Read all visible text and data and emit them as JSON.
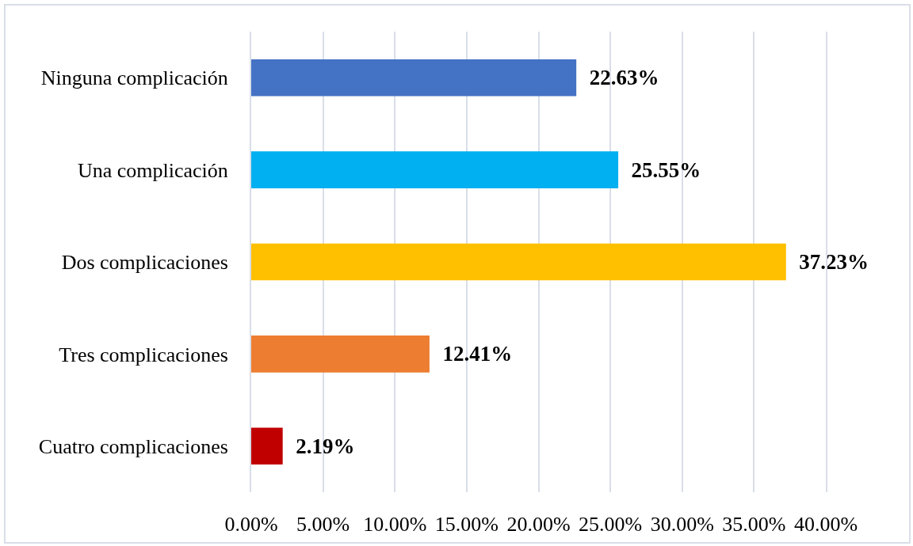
{
  "chart_data": {
    "type": "bar",
    "orientation": "horizontal",
    "categories": [
      "Ninguna complicación",
      "Una complicación",
      "Dos complicaciones",
      "Tres complicaciones",
      "Cuatro complicaciones"
    ],
    "values": [
      22.63,
      25.55,
      37.23,
      12.41,
      2.19
    ],
    "colors": [
      "#4472c4",
      "#00b0f0",
      "#ffc000",
      "#ed7d31",
      "#c00000"
    ],
    "value_labels": [
      "22.63%",
      "25.55%",
      "37.23%",
      "12.41%",
      "2.19%"
    ],
    "xlim": [
      0,
      40
    ],
    "xticks": [
      {
        "value": 0,
        "label": "0.00%"
      },
      {
        "value": 5,
        "label": "5.00%"
      },
      {
        "value": 10,
        "label": "10.00%"
      },
      {
        "value": 15,
        "label": "15.00%"
      },
      {
        "value": 20,
        "label": "20.00%"
      },
      {
        "value": 25,
        "label": "25.00%"
      },
      {
        "value": 30,
        "label": "30.00%"
      },
      {
        "value": 35,
        "label": "35.00%"
      },
      {
        "value": 40,
        "label": "40.00%"
      }
    ],
    "grid": "x"
  }
}
